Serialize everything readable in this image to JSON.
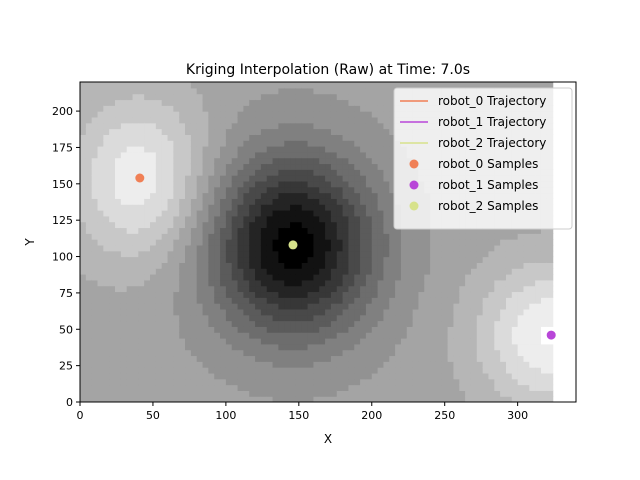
{
  "chart_data": {
    "type": "heatmap",
    "title": "Kriging Interpolation (Raw) at Time: 7.0s",
    "xlabel": "X",
    "ylabel": "Y",
    "xlim": [
      0,
      340
    ],
    "ylim": [
      0,
      220
    ],
    "xticks": [
      0,
      50,
      100,
      150,
      200,
      250,
      300
    ],
    "yticks": [
      0,
      25,
      50,
      75,
      100,
      125,
      150,
      175,
      200
    ],
    "grid": false,
    "heatmap_extent_x": [
      0,
      324
    ],
    "colormap": "gray",
    "background_level": 0.64,
    "field_sources": [
      {
        "x": 41,
        "y": 154,
        "sx": 33,
        "sy": 40,
        "amp": 0.3
      },
      {
        "x": 146,
        "y": 108,
        "sx": 40,
        "sy": 44,
        "amp": -0.64
      },
      {
        "x": 323,
        "y": 46,
        "sx": 35,
        "sy": 35,
        "amp": 0.33
      }
    ],
    "legend_position": "upper right",
    "series": [
      {
        "name": "robot_0 Trajectory",
        "kind": "line",
        "color": "#f07f55",
        "points": [
          [
            41,
            154
          ]
        ]
      },
      {
        "name": "robot_1 Trajectory",
        "kind": "line",
        "color": "#b846d8",
        "points": [
          [
            323,
            46
          ]
        ]
      },
      {
        "name": "robot_2 Trajectory",
        "kind": "line",
        "color": "#d7e28b",
        "points": [
          [
            146,
            108
          ]
        ]
      },
      {
        "name": "robot_0 Samples",
        "kind": "scatter",
        "color": "#f07f55",
        "points": [
          [
            41,
            154
          ]
        ]
      },
      {
        "name": "robot_1 Samples",
        "kind": "scatter",
        "color": "#b846d8",
        "points": [
          [
            323,
            46
          ]
        ]
      },
      {
        "name": "robot_2 Samples",
        "kind": "scatter",
        "color": "#d7e28b",
        "points": [
          [
            146,
            108
          ]
        ]
      }
    ]
  }
}
